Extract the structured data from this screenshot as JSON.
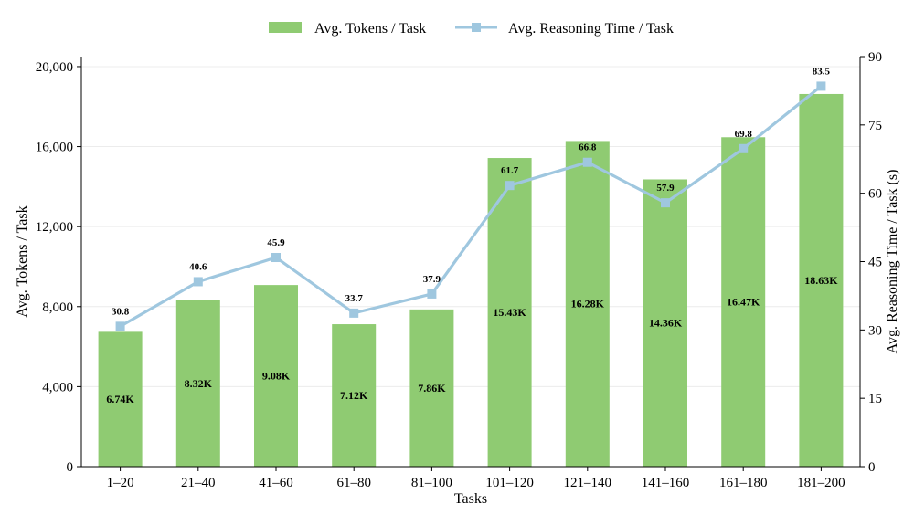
{
  "legend": {
    "bar_label": "Avg. Tokens / Task",
    "line_label": "Avg. Reasoning Time / Task"
  },
  "colors": {
    "bar": "#8fcb72",
    "line": "#9fc7df",
    "grid": "#ececec",
    "axis": "#000000"
  },
  "chart_data": {
    "type": "bar",
    "xlabel": "Tasks",
    "ylabel": "Avg. Tokens / Task",
    "y2label": "Avg. Reasoning Time / Task (s)",
    "categories": [
      "1–20",
      "21–40",
      "41–60",
      "61–80",
      "81–100",
      "101–120",
      "121–140",
      "141–160",
      "161–180",
      "181–200"
    ],
    "ylim": [
      0,
      20500
    ],
    "y2lim": [
      0,
      90
    ],
    "yticks": [
      0,
      4000,
      8000,
      12000,
      16000,
      20000
    ],
    "ytick_labels": [
      "0",
      "4,000",
      "8,000",
      "12,000",
      "16,000",
      "20,000"
    ],
    "y2ticks": [
      0,
      15,
      30,
      45,
      60,
      75,
      90
    ],
    "y2tick_labels": [
      "0",
      "15",
      "30",
      "45",
      "60",
      "75",
      "90"
    ],
    "grid": true,
    "legend_position": "top-center",
    "series": [
      {
        "name": "Avg. Tokens / Task",
        "type": "bar",
        "axis": "left",
        "values": [
          6740,
          8320,
          9080,
          7120,
          7860,
          15430,
          16280,
          14360,
          16470,
          18630
        ],
        "labels": [
          "6.74K",
          "8.32K",
          "9.08K",
          "7.12K",
          "7.86K",
          "15.43K",
          "16.28K",
          "14.36K",
          "16.47K",
          "18.63K"
        ]
      },
      {
        "name": "Avg. Reasoning Time / Task",
        "type": "line",
        "axis": "right",
        "values": [
          30.8,
          40.6,
          45.9,
          33.7,
          37.9,
          61.7,
          66.8,
          57.9,
          69.8,
          83.5
        ],
        "labels": [
          "30.8",
          "40.6",
          "45.9",
          "33.7",
          "37.9",
          "61.7",
          "66.8",
          "57.9",
          "69.8",
          "83.5"
        ]
      }
    ]
  }
}
